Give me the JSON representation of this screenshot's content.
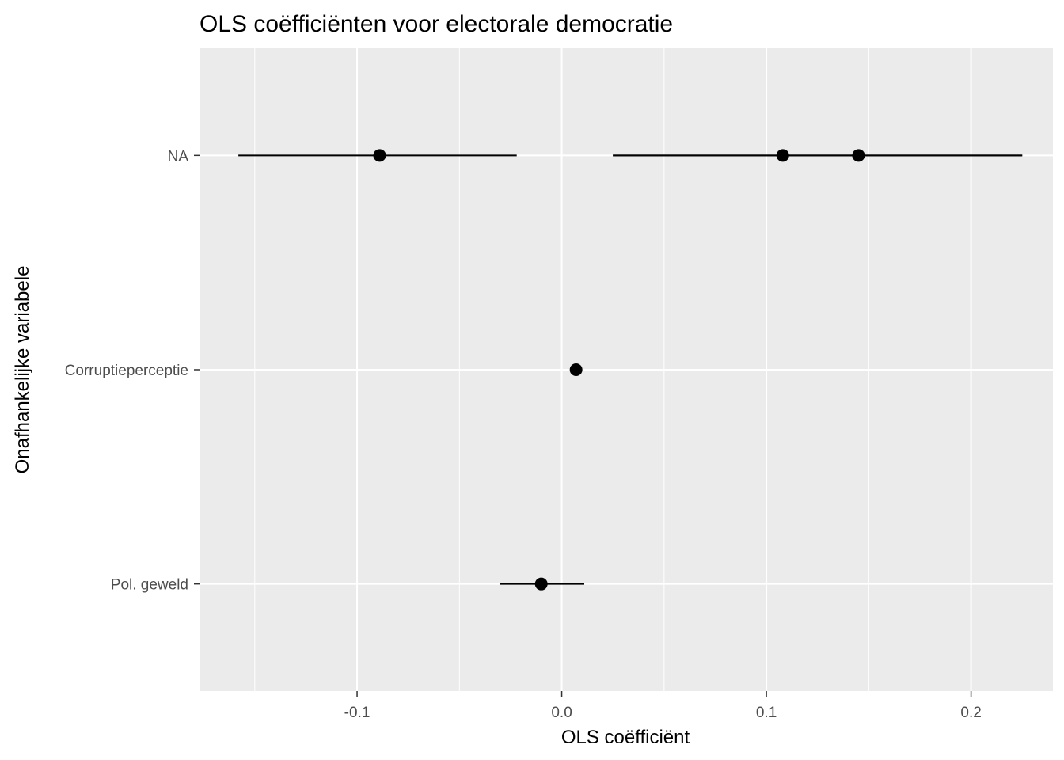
{
  "chart_data": {
    "type": "point-range",
    "title": "OLS coëfficiënten voor electorale democratie",
    "xlabel": "OLS coëfficiënt",
    "ylabel": "Onafhankelijke variabele",
    "xlim": [
      -0.177,
      0.24
    ],
    "x_ticks": [
      -0.1,
      0.0,
      0.1,
      0.2
    ],
    "x_tick_labels": [
      "-0.1",
      "0.0",
      "0.1",
      "0.2"
    ],
    "categories": [
      "NA",
      "Corruptieperceptie",
      "Pol. geweld"
    ],
    "points": [
      {
        "category": "NA",
        "estimate": -0.089,
        "low": -0.158,
        "high": -0.022
      },
      {
        "category": "NA",
        "estimate": 0.108,
        "low": 0.025,
        "high": 0.225
      },
      {
        "category": "NA",
        "estimate": 0.145,
        "low": 0.025,
        "high": 0.225
      },
      {
        "category": "Corruptieperceptie",
        "estimate": 0.007,
        "low": 0.007,
        "high": 0.007
      },
      {
        "category": "Pol. geweld",
        "estimate": -0.01,
        "low": -0.03,
        "high": 0.011
      }
    ],
    "grid": true,
    "legend": "none",
    "colors": {
      "panel": "#ebebeb",
      "grid": "#ffffff",
      "point": "#000000",
      "line": "#000000"
    }
  }
}
